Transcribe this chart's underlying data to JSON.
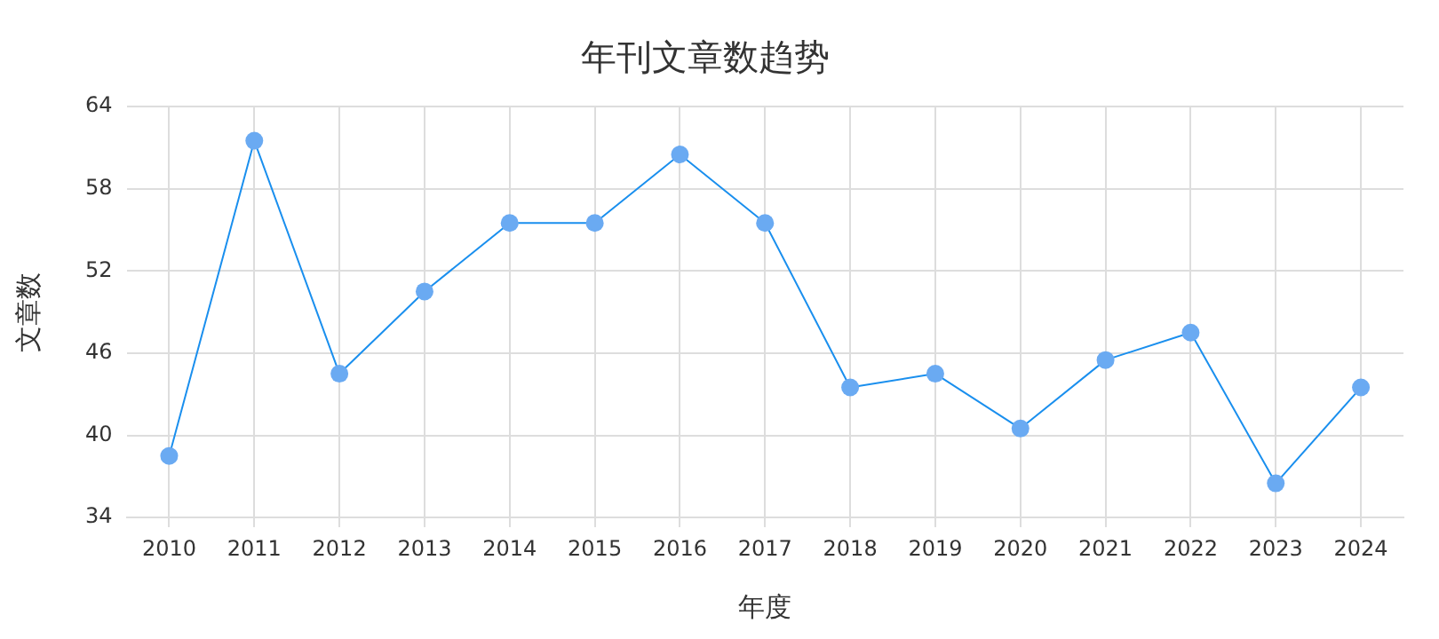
{
  "chart_data": {
    "type": "line",
    "title": "年刊文章数趋势",
    "xlabel": "年度",
    "ylabel": "文章数",
    "categories": [
      "2010",
      "2011",
      "2012",
      "2013",
      "2014",
      "2015",
      "2016",
      "2017",
      "2018",
      "2019",
      "2020",
      "2021",
      "2022",
      "2023",
      "2024"
    ],
    "series": [
      {
        "color": "#1a8fee",
        "values": [
          38.5,
          61.5,
          44.5,
          50.5,
          55.5,
          55.5,
          60.5,
          55.5,
          43.5,
          44.5,
          40.5,
          45.5,
          47.5,
          36.5,
          43.5
        ]
      }
    ],
    "ylim": [
      34,
      64
    ],
    "yticks": [
      34,
      40,
      46,
      52,
      58,
      64
    ],
    "grid": true,
    "legend": false,
    "marker": "circle",
    "line_style": "solid"
  }
}
